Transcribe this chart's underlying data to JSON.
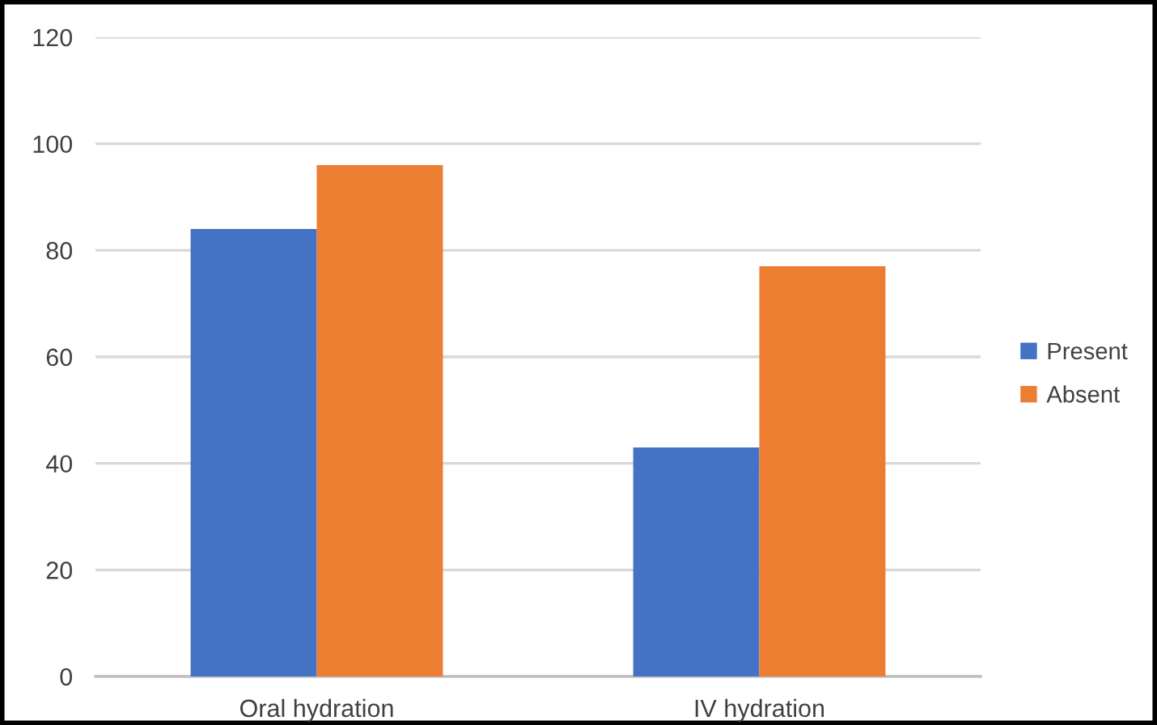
{
  "chart_data": {
    "type": "bar",
    "categories": [
      "Oral hydration",
      "IV hydration"
    ],
    "series": [
      {
        "name": "Present",
        "color": "#4472c4",
        "values": [
          84,
          43
        ]
      },
      {
        "name": "Absent",
        "color": "#ed7d31",
        "values": [
          96,
          77
        ]
      }
    ],
    "ylim": [
      0,
      120
    ],
    "yticks": [
      0,
      20,
      40,
      60,
      80,
      100,
      120
    ],
    "grid": "y",
    "legend": "right"
  }
}
